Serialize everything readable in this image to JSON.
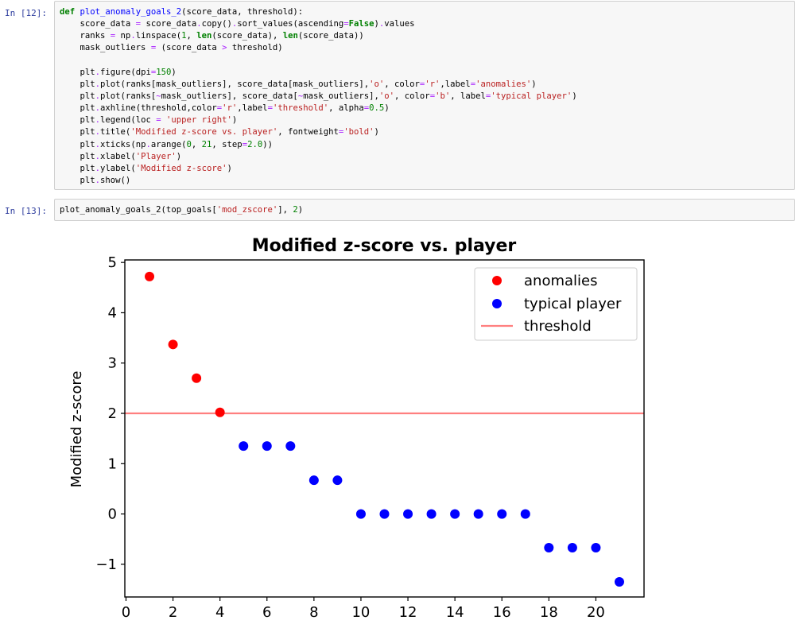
{
  "cells": [
    {
      "prompt": "In [12]:",
      "lines": [
        [
          [
            "kw",
            "def"
          ],
          [
            "plain",
            " "
          ],
          [
            "fn",
            "plot_anomaly_goals_2"
          ],
          [
            "plain",
            "(score_data, threshold):"
          ]
        ],
        [
          [
            "plain",
            "    score_data "
          ],
          [
            "op",
            "="
          ],
          [
            "plain",
            " score_data"
          ],
          [
            "op",
            "."
          ],
          [
            "plain",
            "copy()"
          ],
          [
            "op",
            "."
          ],
          [
            "plain",
            "sort_values(ascending"
          ],
          [
            "op",
            "="
          ],
          [
            "kw",
            "False"
          ],
          [
            "plain",
            ")"
          ],
          [
            "op",
            "."
          ],
          [
            "plain",
            "values"
          ]
        ],
        [
          [
            "plain",
            "    ranks "
          ],
          [
            "op",
            "="
          ],
          [
            "plain",
            " np"
          ],
          [
            "op",
            "."
          ],
          [
            "plain",
            "linspace("
          ],
          [
            "num",
            "1"
          ],
          [
            "plain",
            ", "
          ],
          [
            "kw",
            "len"
          ],
          [
            "plain",
            "(score_data), "
          ],
          [
            "kw",
            "len"
          ],
          [
            "plain",
            "(score_data))"
          ]
        ],
        [
          [
            "plain",
            "    mask_outliers "
          ],
          [
            "op",
            "="
          ],
          [
            "plain",
            " (score_data "
          ],
          [
            "op",
            ">"
          ],
          [
            "plain",
            " threshold)"
          ]
        ],
        [
          [
            "plain",
            ""
          ]
        ],
        [
          [
            "plain",
            "    plt"
          ],
          [
            "op",
            "."
          ],
          [
            "plain",
            "figure(dpi"
          ],
          [
            "op",
            "="
          ],
          [
            "num",
            "150"
          ],
          [
            "plain",
            ")"
          ]
        ],
        [
          [
            "plain",
            "    plt"
          ],
          [
            "op",
            "."
          ],
          [
            "plain",
            "plot(ranks[mask_outliers], score_data[mask_outliers],"
          ],
          [
            "str",
            "'o'"
          ],
          [
            "plain",
            ", color"
          ],
          [
            "op",
            "="
          ],
          [
            "str",
            "'r'"
          ],
          [
            "plain",
            ",label"
          ],
          [
            "op",
            "="
          ],
          [
            "str",
            "'anomalies'"
          ],
          [
            "plain",
            ")"
          ]
        ],
        [
          [
            "plain",
            "    plt"
          ],
          [
            "op",
            "."
          ],
          [
            "plain",
            "plot(ranks["
          ],
          [
            "op",
            "~"
          ],
          [
            "plain",
            "mask_outliers], score_data["
          ],
          [
            "op",
            "~"
          ],
          [
            "plain",
            "mask_outliers],"
          ],
          [
            "str",
            "'o'"
          ],
          [
            "plain",
            ", color"
          ],
          [
            "op",
            "="
          ],
          [
            "str",
            "'b'"
          ],
          [
            "plain",
            ", label"
          ],
          [
            "op",
            "="
          ],
          [
            "str",
            "'typical player'"
          ],
          [
            "plain",
            ")"
          ]
        ],
        [
          [
            "plain",
            "    plt"
          ],
          [
            "op",
            "."
          ],
          [
            "plain",
            "axhline(threshold,color"
          ],
          [
            "op",
            "="
          ],
          [
            "str",
            "'r'"
          ],
          [
            "plain",
            ",label"
          ],
          [
            "op",
            "="
          ],
          [
            "str",
            "'threshold'"
          ],
          [
            "plain",
            ", alpha"
          ],
          [
            "op",
            "="
          ],
          [
            "num",
            "0.5"
          ],
          [
            "plain",
            ")"
          ]
        ],
        [
          [
            "plain",
            "    plt"
          ],
          [
            "op",
            "."
          ],
          [
            "plain",
            "legend(loc "
          ],
          [
            "op",
            "="
          ],
          [
            "plain",
            " "
          ],
          [
            "str",
            "'upper right'"
          ],
          [
            "plain",
            ")"
          ]
        ],
        [
          [
            "plain",
            "    plt"
          ],
          [
            "op",
            "."
          ],
          [
            "plain",
            "title("
          ],
          [
            "str",
            "'Modified z-score vs. player'"
          ],
          [
            "plain",
            ", fontweight"
          ],
          [
            "op",
            "="
          ],
          [
            "str",
            "'bold'"
          ],
          [
            "plain",
            ")"
          ]
        ],
        [
          [
            "plain",
            "    plt"
          ],
          [
            "op",
            "."
          ],
          [
            "plain",
            "xticks(np"
          ],
          [
            "op",
            "."
          ],
          [
            "plain",
            "arange("
          ],
          [
            "num",
            "0"
          ],
          [
            "plain",
            ", "
          ],
          [
            "num",
            "21"
          ],
          [
            "plain",
            ", step"
          ],
          [
            "op",
            "="
          ],
          [
            "num",
            "2.0"
          ],
          [
            "plain",
            "))"
          ]
        ],
        [
          [
            "plain",
            "    plt"
          ],
          [
            "op",
            "."
          ],
          [
            "plain",
            "xlabel("
          ],
          [
            "str",
            "'Player'"
          ],
          [
            "plain",
            ")"
          ]
        ],
        [
          [
            "plain",
            "    plt"
          ],
          [
            "op",
            "."
          ],
          [
            "plain",
            "ylabel("
          ],
          [
            "str",
            "'Modified z-score'"
          ],
          [
            "plain",
            ")"
          ]
        ],
        [
          [
            "plain",
            "    plt"
          ],
          [
            "op",
            "."
          ],
          [
            "plain",
            "show()"
          ]
        ]
      ]
    },
    {
      "prompt": "In [13]:",
      "lines": [
        [
          [
            "plain",
            "plot_anomaly_goals_2(top_goals["
          ],
          [
            "str",
            "'mod_zscore'"
          ],
          [
            "plain",
            "], "
          ],
          [
            "num",
            "2"
          ],
          [
            "plain",
            ")"
          ]
        ]
      ]
    }
  ],
  "token_colors": {
    "kw": "#008000",
    "fn": "#0000ff",
    "str": "#ba2121",
    "num": "#008000",
    "op": "#aa22ff",
    "plain": "#000000"
  },
  "chart_data": {
    "type": "scatter",
    "title": "Modified z-score vs. player",
    "xlabel": "",
    "ylabel": "Modified z-score",
    "xlim": [
      -0.05,
      22.05
    ],
    "ylim": [
      -1.65,
      5.05
    ],
    "xticks": [
      0,
      2,
      4,
      6,
      8,
      10,
      12,
      14,
      16,
      18,
      20
    ],
    "xtick_labels": [
      "0",
      "2",
      "4",
      "6",
      "8",
      "10",
      "12",
      "14",
      "16",
      "18",
      "20"
    ],
    "yticks": [
      -1,
      0,
      1,
      2,
      3,
      4,
      5
    ],
    "ytick_labels": [
      "−1",
      "0",
      "1",
      "2",
      "3",
      "4",
      "5"
    ],
    "grid": false,
    "legend_position": "upper right",
    "series": [
      {
        "name": "anomalies",
        "color": "#ff0000",
        "marker": "circle",
        "x": [
          1,
          2,
          3,
          4
        ],
        "y": [
          4.72,
          3.37,
          2.7,
          2.02
        ]
      },
      {
        "name": "typical player",
        "color": "#0000ff",
        "marker": "circle",
        "x": [
          5,
          6,
          7,
          8,
          9,
          10,
          11,
          12,
          13,
          14,
          15,
          16,
          17,
          18,
          19,
          20,
          21
        ],
        "y": [
          1.35,
          1.35,
          1.35,
          0.67,
          0.67,
          0,
          0,
          0,
          0,
          0,
          0,
          0,
          0,
          -0.67,
          -0.67,
          -0.67,
          -1.35
        ]
      }
    ],
    "hlines": [
      {
        "name": "threshold",
        "y": 2,
        "color": "#ff0000",
        "alpha": 0.5
      }
    ]
  }
}
